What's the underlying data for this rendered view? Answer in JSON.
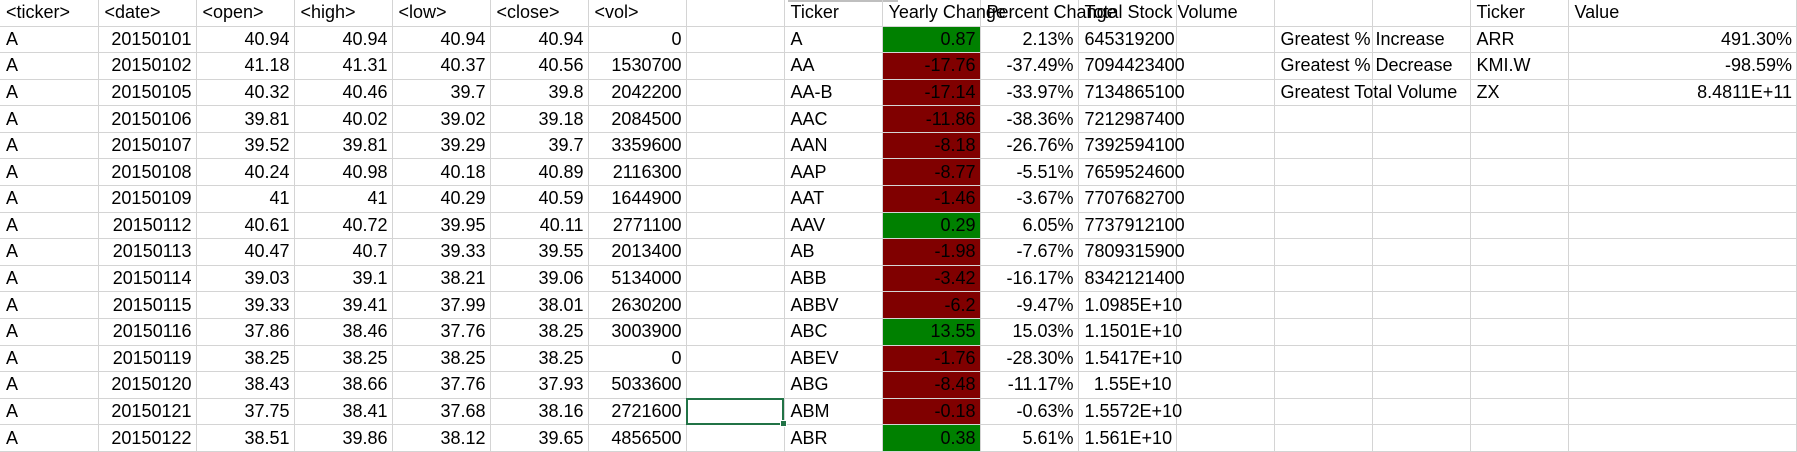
{
  "columns": {
    "raw": [
      "<ticker>",
      "<date>",
      "<open>",
      "<high>",
      "<low>",
      "<close>",
      "<vol>"
    ],
    "summary": [
      "Ticker",
      "Yearly Change",
      "Percent Change",
      "Total Stock Volume"
    ],
    "greatest": [
      "Ticker",
      "Value"
    ]
  },
  "raw_rows": [
    {
      "ticker": "A",
      "date": "20150101",
      "open": "40.94",
      "high": "40.94",
      "low": "40.94",
      "close": "40.94",
      "vol": "0"
    },
    {
      "ticker": "A",
      "date": "20150102",
      "open": "41.18",
      "high": "41.31",
      "low": "40.37",
      "close": "40.56",
      "vol": "1530700"
    },
    {
      "ticker": "A",
      "date": "20150105",
      "open": "40.32",
      "high": "40.46",
      "low": "39.7",
      "close": "39.8",
      "vol": "2042200"
    },
    {
      "ticker": "A",
      "date": "20150106",
      "open": "39.81",
      "high": "40.02",
      "low": "39.02",
      "close": "39.18",
      "vol": "2084500"
    },
    {
      "ticker": "A",
      "date": "20150107",
      "open": "39.52",
      "high": "39.81",
      "low": "39.29",
      "close": "39.7",
      "vol": "3359600"
    },
    {
      "ticker": "A",
      "date": "20150108",
      "open": "40.24",
      "high": "40.98",
      "low": "40.18",
      "close": "40.89",
      "vol": "2116300"
    },
    {
      "ticker": "A",
      "date": "20150109",
      "open": "41",
      "high": "41",
      "low": "40.29",
      "close": "40.59",
      "vol": "1644900"
    },
    {
      "ticker": "A",
      "date": "20150112",
      "open": "40.61",
      "high": "40.72",
      "low": "39.95",
      "close": "40.11",
      "vol": "2771100"
    },
    {
      "ticker": "A",
      "date": "20150113",
      "open": "40.47",
      "high": "40.7",
      "low": "39.33",
      "close": "39.55",
      "vol": "2013400"
    },
    {
      "ticker": "A",
      "date": "20150114",
      "open": "39.03",
      "high": "39.1",
      "low": "38.21",
      "close": "39.06",
      "vol": "5134000"
    },
    {
      "ticker": "A",
      "date": "20150115",
      "open": "39.33",
      "high": "39.41",
      "low": "37.99",
      "close": "38.01",
      "vol": "2630200"
    },
    {
      "ticker": "A",
      "date": "20150116",
      "open": "37.86",
      "high": "38.46",
      "low": "37.76",
      "close": "38.25",
      "vol": "3003900"
    },
    {
      "ticker": "A",
      "date": "20150119",
      "open": "38.25",
      "high": "38.25",
      "low": "38.25",
      "close": "38.25",
      "vol": "0"
    },
    {
      "ticker": "A",
      "date": "20150120",
      "open": "38.43",
      "high": "38.66",
      "low": "37.76",
      "close": "37.93",
      "vol": "5033600"
    },
    {
      "ticker": "A",
      "date": "20150121",
      "open": "37.75",
      "high": "38.41",
      "low": "37.68",
      "close": "38.16",
      "vol": "2721600"
    },
    {
      "ticker": "A",
      "date": "20150122",
      "open": "38.51",
      "high": "39.86",
      "low": "38.12",
      "close": "39.65",
      "vol": "4856500"
    }
  ],
  "summary_rows": [
    {
      "ticker": "A",
      "change": "0.87",
      "pct": "2.13%",
      "volume": "645319200",
      "fill": "#008000"
    },
    {
      "ticker": "AA",
      "change": "-17.76",
      "pct": "-37.49%",
      "volume": "7094423400",
      "fill": "#800000"
    },
    {
      "ticker": "AA-B",
      "change": "-17.14",
      "pct": "-33.97%",
      "volume": "7134865100",
      "fill": "#800000"
    },
    {
      "ticker": "AAC",
      "change": "-11.86",
      "pct": "-38.36%",
      "volume": "7212987400",
      "fill": "#800000"
    },
    {
      "ticker": "AAN",
      "change": "-8.18",
      "pct": "-26.76%",
      "volume": "7392594100",
      "fill": "#800000"
    },
    {
      "ticker": "AAP",
      "change": "-8.77",
      "pct": "-5.51%",
      "volume": "7659524600",
      "fill": "#800000"
    },
    {
      "ticker": "AAT",
      "change": "-1.46",
      "pct": "-3.67%",
      "volume": "7707682700",
      "fill": "#800000"
    },
    {
      "ticker": "AAV",
      "change": "0.29",
      "pct": "6.05%",
      "volume": "7737912100",
      "fill": "#008000"
    },
    {
      "ticker": "AB",
      "change": "-1.98",
      "pct": "-7.67%",
      "volume": "7809315900",
      "fill": "#800000"
    },
    {
      "ticker": "ABB",
      "change": "-3.42",
      "pct": "-16.17%",
      "volume": "8342121400",
      "fill": "#800000"
    },
    {
      "ticker": "ABBV",
      "change": "-6.2",
      "pct": "-9.47%",
      "volume": "1.0985E+10",
      "fill": "#800000"
    },
    {
      "ticker": "ABC",
      "change": "13.55",
      "pct": "15.03%",
      "volume": "1.1501E+10",
      "fill": "#008000"
    },
    {
      "ticker": "ABEV",
      "change": "-1.76",
      "pct": "-28.30%",
      "volume": "1.5417E+10",
      "fill": "#800000"
    },
    {
      "ticker": "ABG",
      "change": "-8.48",
      "pct": "-11.17%",
      "volume": "1.55E+10",
      "fill": "#800000"
    },
    {
      "ticker": "ABM",
      "change": "-0.18",
      "pct": "-0.63%",
      "volume": "1.5572E+10",
      "fill": "#800000"
    },
    {
      "ticker": "ABR",
      "change": "0.38",
      "pct": "5.61%",
      "volume": "1.561E+10",
      "fill": "#008000"
    }
  ],
  "greatest_rows": [
    {
      "label": "Greatest % Increase",
      "ticker": "ARR",
      "value": "491.30%"
    },
    {
      "label": "Greatest % Decrease",
      "ticker": "KMI.W",
      "value": "-98.59%"
    },
    {
      "label": "Greatest Total Volume",
      "ticker": "ZX",
      "value": "8.4811E+11"
    }
  ],
  "colors": {
    "positive": "#008000",
    "negative": "#800000",
    "selection": "#217346",
    "gridline": "#d4d4d4"
  }
}
